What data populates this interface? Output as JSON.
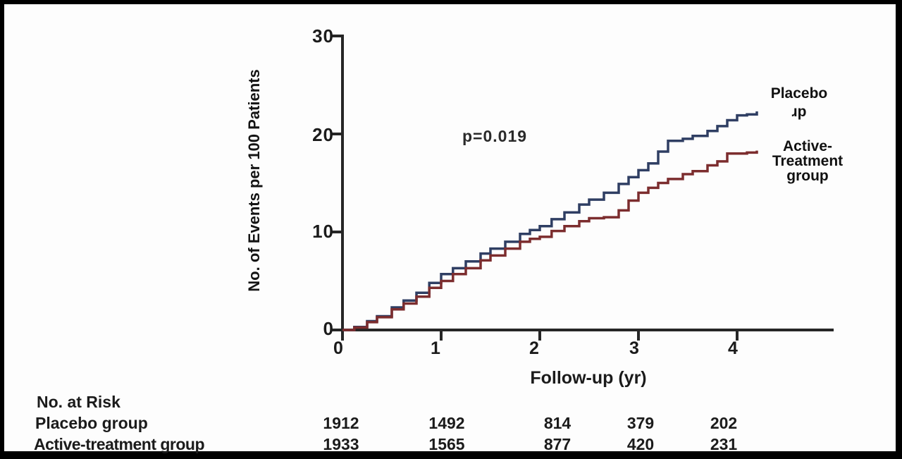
{
  "figure": {
    "colors": {
      "placebo_line": "#2f3e63",
      "active_line": "#7c2d2e",
      "axis": "#262626",
      "text": "#1b1b1b",
      "background": "#fdfdfd",
      "frame": "#000000"
    }
  },
  "chart_data": {
    "type": "line",
    "title": "",
    "xlabel": "Follow-up (yr)",
    "ylabel": "No. of Events per 100 Patients",
    "annotation": "p=0.019",
    "xlim": [
      0,
      5
    ],
    "ylim": [
      0,
      30
    ],
    "xticks": [
      0,
      1,
      2,
      3,
      4
    ],
    "yticks": [
      0,
      10,
      20,
      30
    ],
    "grid": false,
    "legend_position": "right of curve ends",
    "step_interpolation": true,
    "series": [
      {
        "name": "Placebo group",
        "color": "#2f3e63",
        "points": [
          [
            0,
            0
          ],
          [
            0.12,
            0.3
          ],
          [
            0.25,
            0.9
          ],
          [
            0.35,
            1.4
          ],
          [
            0.5,
            2.3
          ],
          [
            0.62,
            3.0
          ],
          [
            0.75,
            3.8
          ],
          [
            0.88,
            4.8
          ],
          [
            1.0,
            5.7
          ],
          [
            1.12,
            6.3
          ],
          [
            1.25,
            7.0
          ],
          [
            1.4,
            7.8
          ],
          [
            1.5,
            8.3
          ],
          [
            1.65,
            9.0
          ],
          [
            1.8,
            9.8
          ],
          [
            1.9,
            10.2
          ],
          [
            2.0,
            10.6
          ],
          [
            2.12,
            11.3
          ],
          [
            2.25,
            12.0
          ],
          [
            2.4,
            12.8
          ],
          [
            2.5,
            13.3
          ],
          [
            2.65,
            14.0
          ],
          [
            2.8,
            14.9
          ],
          [
            2.9,
            15.6
          ],
          [
            3.0,
            16.3
          ],
          [
            3.1,
            17.0
          ],
          [
            3.2,
            18.2
          ],
          [
            3.3,
            19.3
          ],
          [
            3.45,
            19.5
          ],
          [
            3.55,
            19.8
          ],
          [
            3.7,
            20.3
          ],
          [
            3.8,
            20.8
          ],
          [
            3.9,
            21.4
          ],
          [
            4.0,
            21.9
          ],
          [
            4.1,
            22.0
          ],
          [
            4.2,
            22.3
          ]
        ]
      },
      {
        "name": "Active-Treatment group",
        "color": "#7c2d2e",
        "points": [
          [
            0,
            0
          ],
          [
            0.12,
            0.25
          ],
          [
            0.25,
            0.8
          ],
          [
            0.35,
            1.3
          ],
          [
            0.5,
            2.1
          ],
          [
            0.62,
            2.7
          ],
          [
            0.75,
            3.4
          ],
          [
            0.88,
            4.3
          ],
          [
            1.0,
            5.0
          ],
          [
            1.12,
            5.7
          ],
          [
            1.25,
            6.3
          ],
          [
            1.4,
            7.1
          ],
          [
            1.5,
            7.6
          ],
          [
            1.65,
            8.3
          ],
          [
            1.8,
            9.0
          ],
          [
            1.9,
            9.3
          ],
          [
            2.0,
            9.5
          ],
          [
            2.12,
            10.1
          ],
          [
            2.25,
            10.6
          ],
          [
            2.4,
            11.1
          ],
          [
            2.5,
            11.4
          ],
          [
            2.65,
            11.5
          ],
          [
            2.8,
            12.2
          ],
          [
            2.9,
            13.2
          ],
          [
            3.0,
            14.0
          ],
          [
            3.1,
            14.5
          ],
          [
            3.2,
            15.0
          ],
          [
            3.3,
            15.4
          ],
          [
            3.45,
            15.9
          ],
          [
            3.55,
            16.2
          ],
          [
            3.7,
            16.8
          ],
          [
            3.8,
            17.2
          ],
          [
            3.9,
            18.0
          ],
          [
            4.0,
            18.0
          ],
          [
            4.1,
            18.1
          ],
          [
            4.2,
            18.3
          ]
        ]
      }
    ]
  },
  "legend": {
    "placebo_line1": "Placebo",
    "placebo_line2": "ɹp",
    "active_line1": "Active-",
    "active_line2": "Treatment",
    "active_line3": "group"
  },
  "risk_table": {
    "header": "No. at Risk",
    "rows": [
      {
        "label": "Placebo group",
        "values": [
          "1912",
          "1492",
          "814",
          "379",
          "202"
        ]
      },
      {
        "label": "Active-treatment group",
        "values": [
          "1933",
          "1565",
          "877",
          "420",
          "231"
        ]
      }
    ]
  }
}
